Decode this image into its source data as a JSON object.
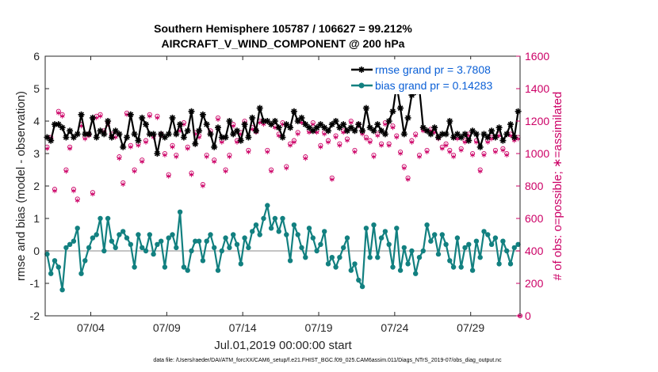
{
  "chart_data": {
    "type": "line",
    "title_line1": "Southern Hemisphere 105787 / 106627 = 99.212%",
    "title_line2": "AIRCRAFT_V_WIND_COMPONENT @ 200 hPa",
    "xlabel": "Jul.01,2019 00:00:00 start",
    "ylabel_left": "rmse and bias (model - observation)",
    "ylabel_right": "# of obs: o=possible; ∗=assimilated",
    "ylim_left": [
      -2,
      6
    ],
    "ylim_right": [
      0,
      1600
    ],
    "xlim": [
      1.0,
      32.25
    ],
    "yticks_left": [
      "-2",
      "-1",
      "0",
      "1",
      "2",
      "3",
      "4",
      "5",
      "6"
    ],
    "yticks_right": [
      "0",
      "200",
      "400",
      "600",
      "800",
      "1000",
      "1200",
      "1400",
      "1600"
    ],
    "xticks": [
      {
        "x": 4,
        "label": "07/04"
      },
      {
        "x": 9,
        "label": "07/09"
      },
      {
        "x": 14,
        "label": "07/14"
      },
      {
        "x": 19,
        "label": "07/19"
      },
      {
        "x": 24,
        "label": "07/24"
      },
      {
        "x": 29,
        "label": "07/29"
      }
    ],
    "legend": [
      {
        "name": "rmse grand pr = 3.7808",
        "color": "#000000"
      },
      {
        "name": "bias grand pr = 0.14283",
        "color": "#128080"
      }
    ],
    "x_start": 1.125,
    "x_step": 0.25,
    "rmse_values": [
      3.5,
      3.4,
      3.9,
      3.9,
      3.8,
      3.5,
      3.7,
      3.5,
      3.6,
      4.2,
      3.6,
      3.6,
      4.1,
      3.5,
      3.7,
      3.6,
      4.0,
      3.5,
      3.7,
      3.6,
      3.2,
      3.5,
      4.2,
      3.6,
      3.4,
      4.1,
      3.9,
      3.6,
      3.6,
      3.0,
      3.6,
      3.5,
      3.6,
      4.1,
      3.6,
      3.9,
      3.5,
      3.7,
      4.3,
      3.3,
      3.7,
      4.2,
      3.9,
      3.6,
      3.2,
      3.8,
      3.5,
      3.5,
      4.0,
      3.6,
      3.7,
      3.4,
      3.9,
      3.5,
      4.1,
      3.7,
      4.4,
      4.0,
      4.0,
      3.9,
      4.0,
      3.8,
      3.5,
      3.9,
      3.8,
      4.3,
      4.0,
      4.1,
      3.9,
      3.8,
      3.7,
      3.8,
      3.9,
      3.8,
      3.7,
      3.9,
      4.0,
      3.8,
      3.9,
      3.7,
      3.8,
      3.7,
      3.9,
      3.7,
      4.4,
      3.8,
      3.7,
      3.9,
      3.7,
      3.6,
      4.0,
      4.3,
      5.1,
      4.4,
      3.6,
      4.1,
      4.8,
      4.9,
      5.0,
      3.8,
      3.7,
      3.6,
      3.8,
      3.5,
      3.6,
      3.6,
      4.0,
      3.5,
      3.6,
      3.5,
      3.6,
      3.4,
      3.7,
      3.6,
      3.2,
      3.6,
      3.5,
      3.7,
      3.5,
      3.8,
      3.4,
      3.6,
      3.9,
      3.5,
      4.3,
      3.7,
      3.8,
      4.2,
      3.8,
      3.6,
      3.9,
      3.7,
      3.8,
      3.6,
      3.5,
      3.7,
      3.6,
      3.4,
      3.6,
      3.4,
      3.3,
      3.5,
      3.2,
      3.6,
      3.4,
      3.7,
      3.4,
      3.4,
      3.5,
      3.4,
      3.3,
      3.7,
      3.4,
      3.6,
      3.5,
      3.6,
      3.9,
      3.3,
      3.4,
      3.4,
      3.6,
      3.7,
      3.2,
      3.1,
      3.5,
      3.1,
      3.4,
      3.3,
      3.6,
      3.5,
      3.3,
      3.7,
      3.3,
      3.4,
      3.5,
      3.2,
      3.3,
      3.5,
      3.3,
      3.6,
      3.3,
      3.6,
      3.4,
      3.3,
      3.3,
      3.6,
      3.1,
      3.4,
      3.2,
      3.5,
      3.3,
      3.6,
      3.4,
      3.6,
      3.3,
      3.4,
      3.2,
      3.6,
      3.4,
      3.5,
      3.7,
      3.3,
      3.4,
      3.3,
      3.5,
      3.2,
      3.4,
      3.3,
      3.6,
      3.2,
      3.2,
      3.5,
      3.1,
      3.2,
      3.5,
      3.6,
      3.0,
      3.4,
      3.4,
      3.6,
      3.0,
      3.4,
      3.2,
      3.6,
      3.2,
      3.3,
      3.3,
      3.5,
      3.3,
      3.4,
      3.2,
      3.6,
      3.3,
      3.2,
      3.1,
      3.3,
      3.4,
      3.5,
      3.3,
      3.2,
      3.2,
      3.7,
      3.3,
      3.1,
      3.4,
      3.2,
      3.5,
      3.1,
      3.4,
      3.5,
      3.3,
      3.2,
      3.4,
      3.5,
      3.2,
      3.4,
      3.3,
      3.6,
      3.3,
      3.2,
      3.4,
      3.5,
      3.3,
      3.1,
      3.6,
      3.2,
      3.4,
      3.3,
      3.5,
      3.2,
      3.4,
      3.3,
      3.2,
      3.5,
      3.3,
      3.2,
      3.5,
      3.4,
      3.3,
      3.4,
      3.5,
      3.1,
      3.3,
      3.4,
      3.5,
      3.2,
      3.2,
      3.6,
      3.3,
      3.4,
      3.2,
      3.5,
      3.1,
      3.4,
      3.5
    ],
    "bias_values": [
      -0.1,
      -0.7,
      -0.3,
      -0.5,
      -1.2,
      0.1,
      0.2,
      0.3,
      0.7,
      -0.7,
      -0.3,
      0.1,
      0.4,
      0.5,
      1.0,
      0.0,
      1.0,
      0.3,
      0.1,
      0.5,
      0.6,
      0.4,
      0.2,
      -0.5,
      0.5,
      0.1,
      0.0,
      0.5,
      -0.1,
      0.2,
      0.3,
      -0.5,
      0.4,
      0.5,
      0.1,
      1.2,
      -0.5,
      -0.6,
      0.0,
      0.3,
      0.3,
      -0.3,
      0.3,
      0.5,
      0.1,
      -0.6,
      0.0,
      0.4,
      0.1,
      0.5,
      0.2,
      -0.4,
      0.4,
      0.1,
      0.6,
      0.8,
      0.5,
      1.0,
      1.4,
      0.7,
      1.0,
      0.6,
      1.0,
      0.5,
      -0.3,
      0.8,
      0.5,
      0.1,
      -0.2,
      0.7,
      0.4,
      0.0,
      0.2,
      0.6,
      -0.4,
      -0.2,
      -0.5,
      -0.2,
      0.1,
      0.4,
      -0.6,
      -0.4,
      -0.9,
      -1.1,
      0.7,
      -0.2,
      0.8,
      -0.2,
      0.4,
      0.6,
      0.2,
      -0.5,
      0.7,
      -0.6,
      0.1,
      -0.4,
      0.0,
      -0.7,
      -0.2,
      0.0,
      0.8,
      0.3,
      0.5,
      -0.1,
      0.5,
      0.2,
      -0.3,
      -0.5,
      0.4,
      -0.5,
      0.1,
      0.2,
      -0.6,
      0.3,
      -0.2,
      0.6,
      0.5,
      0.2,
      0.4,
      -0.4,
      0.3,
      0.0,
      -0.4,
      0.1,
      0.2,
      0.6,
      0.4,
      0.7,
      0.5,
      0.0,
      0.2,
      -0.6,
      0.6,
      0.8,
      0.1,
      0.4,
      0.3,
      0.6,
      0.3,
      0.0,
      0.4,
      0.6,
      0.3,
      0.1,
      0.5,
      0.2,
      0.6,
      0.3,
      0.0,
      0.4,
      0.3,
      0.2,
      0.1,
      0.5,
      0.0,
      0.3,
      0.4,
      0.6,
      0.2,
      0.1,
      0.5,
      -0.1,
      0.3,
      0.6,
      0.2,
      0.4,
      0.8,
      0.1,
      0.3,
      0.9,
      0.2,
      0.5,
      0.4,
      0.1,
      0.6,
      0.3,
      0.0,
      0.5,
      0.7,
      0.2,
      0.4,
      0.1,
      0.6,
      0.3,
      0.8,
      0.2,
      0.1,
      0.5,
      0.4,
      0.3,
      0.6,
      0.1,
      0.2,
      0.7,
      0.4,
      0.3,
      0.5,
      0.0,
      0.6,
      0.3,
      0.2,
      0.8,
      0.4,
      0.5,
      0.1,
      0.3,
      0.6,
      0.2,
      0.9,
      0.4,
      0.3,
      0.7,
      0.1,
      0.5,
      0.6,
      0.2,
      0.4,
      0.3,
      0.8,
      0.5,
      0.1,
      0.6,
      0.3,
      0.4,
      0.7,
      0.2,
      0.5,
      0.9,
      0.3,
      0.6,
      0.4,
      1.1,
      0.3,
      0.7,
      0.6,
      0.2,
      0.8,
      0.5,
      0.9,
      0.4,
      1.0,
      0.6,
      0.3,
      0.7,
      0.5,
      0.8,
      0.2,
      0.6,
      0.4,
      0.7,
      0.9,
      0.5,
      0.3,
      0.6,
      0.8,
      0.4,
      0.7,
      1.1,
      0.5,
      0.6,
      0.3,
      0.9,
      0.7,
      0.4,
      0.8,
      0.5,
      1.0,
      0.6,
      0.7,
      0.9,
      0.4,
      0.8,
      1.1,
      0.6,
      0.7,
      1.0,
      0.5,
      0.8,
      0.6,
      0.9,
      1.1
    ],
    "obs_possible": [
      1040,
      1100,
      780,
      1260,
      1240,
      900,
      1040,
      780,
      720,
      1180,
      1100,
      1120,
      760,
      1230,
      1240,
      1140,
      1190,
      1120,
      1110,
      980,
      820,
      1250,
      1050,
      900,
      1060,
      960,
      1080,
      1240,
      1110,
      1230,
      1120,
      1000,
      870,
      1050,
      990,
      1150,
      1190,
      1040,
      880,
      1130,
      1110,
      810,
      990,
      1140,
      960,
      1220,
      1080,
      900,
      990,
      1180,
      1080,
      1130,
      1200,
      1020,
      1160,
      1140,
      1200,
      1190,
      1020,
      900,
      1170,
      1120,
      1190,
      920,
      1060,
      1080,
      1130,
      1200,
      980,
      1140,
      1190,
      1140,
      1050,
      1130,
      1080,
      850,
      1110,
      1060,
      1140,
      1090,
      1200,
      1020,
      1180,
      1130,
      1100,
      1080,
      990,
      1120,
      1060,
      1190,
      1060,
      1170,
      1110,
      1010,
      920,
      850,
      1080,
      1120,
      990,
      1150,
      1020,
      1150,
      1140,
      1100,
      1040,
      1060,
      1020,
      990,
      1100,
      1030,
      1080,
      1120,
      1000,
      1080,
      900,
      1000,
      1080,
      1100,
      1020,
      1120,
      1030,
      1000,
      1120,
      1090,
      1100,
      1060,
      1010,
      1080,
      1080,
      1090,
      1080,
      1050,
      1150,
      1100,
      1070,
      1040,
      1110,
      1080,
      1060,
      1120,
      1020,
      1100,
      1060,
      1080,
      1040,
      1110,
      1090,
      1060,
      1100,
      1050,
      1090,
      1030,
      1120,
      1080,
      1060,
      1100,
      1040,
      1070,
      1010,
      1080,
      1100,
      1050,
      1090,
      1070,
      1020,
      1060,
      1100,
      1080,
      1030,
      1090,
      1050,
      1100,
      1060,
      1040,
      1080,
      1020,
      1090,
      1070,
      1050,
      1100,
      1030,
      1060,
      1080,
      1090,
      1040,
      1070,
      1020,
      1100,
      1060,
      1080,
      1050,
      1090,
      1030,
      1070,
      1060,
      1100,
      1080,
      1040,
      1090,
      1060,
      1050,
      1080,
      1020,
      1070,
      1100,
      1060,
      1040,
      1090,
      1050,
      1080,
      1030,
      1070,
      1060,
      1100,
      1040,
      1090,
      1050,
      1080,
      1070,
      1060,
      1020,
      1090,
      1100,
      1040,
      1070,
      1080,
      1050,
      1060,
      1090,
      1030,
      1080,
      1070,
      1100,
      1040,
      1060,
      1090,
      1050,
      1080,
      1070,
      1020,
      1100,
      1060,
      1040,
      1090,
      1080,
      1050,
      1070,
      1060,
      1030,
      1100,
      1080,
      1040,
      1090,
      1070,
      1060,
      1050,
      1080,
      1020,
      1090,
      1100,
      1040,
      1070,
      1060,
      1080,
      1050,
      1090,
      1030,
      1070,
      1060,
      1100,
      1040,
      1080,
      1050,
      1090,
      1070,
      1060,
      1020,
      1080,
      1100,
      1040,
      1090,
      1070,
      1050,
      1060,
      1080,
      1030,
      1100
    ],
    "obs_assimilated": [
      1030,
      1090,
      770,
      1250,
      1230,
      890,
      1030,
      770,
      710,
      1170,
      1090,
      1110,
      750,
      1220,
      1230,
      1130,
      1180,
      1110,
      1100,
      970,
      810,
      1240,
      1040,
      890,
      1050,
      950,
      1070,
      1230,
      1100,
      1220,
      1110,
      990,
      860,
      1040,
      980,
      1140,
      1180,
      1030,
      870,
      1120,
      1100,
      800,
      980,
      1130,
      950,
      1210,
      1070,
      890,
      980,
      1170,
      1070,
      1120,
      1190,
      1010,
      1150,
      1130,
      1190,
      1180,
      1010,
      890,
      1160,
      1110,
      1180,
      910,
      1050,
      1070,
      1120,
      1190,
      970,
      1130,
      1180,
      1130,
      1040,
      1120,
      1070,
      840,
      1100,
      1050,
      1130,
      1080,
      1190,
      1010,
      1170,
      1120,
      1090,
      1070,
      980,
      1110,
      1050,
      1180,
      1050,
      1160,
      1100,
      1000,
      910,
      840,
      1070,
      1110,
      980,
      1140,
      1010,
      1140,
      1130,
      1090,
      1030,
      1050,
      1010,
      980,
      1090,
      1020,
      1070,
      1110,
      990,
      1070,
      890,
      990,
      1070,
      1090,
      1010,
      1110,
      1020,
      990,
      1110,
      1080,
      1090,
      1050,
      1000,
      1070,
      1070,
      1080,
      1070,
      1040,
      1140,
      1090,
      1060,
      1030,
      1100,
      1070,
      1050,
      1110,
      1010,
      1090,
      1050,
      1070,
      1030,
      1100,
      1080,
      1050,
      1090,
      1040,
      1080,
      1020,
      1110,
      1070,
      1050,
      1090,
      1030,
      1060,
      1000,
      1070,
      1090,
      1040,
      1080,
      1060,
      1010,
      1050,
      1090,
      1070,
      1020,
      1080,
      1040,
      1090,
      1050,
      1030,
      1070,
      1010,
      1080,
      1060,
      1040,
      1090,
      1020,
      1050,
      1070,
      1080,
      1030,
      1060,
      1010,
      1090,
      1050,
      1070,
      1040,
      1080,
      1020,
      1060,
      1050,
      1090,
      1070,
      1030,
      1080,
      1050,
      1040,
      1070,
      1010,
      1060,
      1090,
      1050,
      1030,
      1080,
      1040,
      1070,
      1020,
      1060,
      1050,
      1090,
      1030,
      1080,
      1040,
      1070,
      1060,
      1050,
      1010,
      1080,
      1090,
      1030,
      1060,
      1070,
      1040,
      1050,
      1080,
      1020,
      1070,
      1060,
      1090,
      1030,
      1050,
      1080,
      1040,
      1070,
      1060,
      1010,
      1090,
      1050,
      1030,
      1080,
      1070,
      1040,
      1060,
      1050,
      1020,
      1090,
      1070,
      1030,
      1080,
      1060,
      1050,
      1040,
      1070,
      1010,
      1080,
      1090,
      1030,
      1060,
      1050,
      1070,
      1040,
      1080,
      1020,
      1060,
      1050,
      1090,
      1030,
      1070,
      1040,
      1080,
      1060,
      1050,
      1010,
      1070,
      1090,
      1030,
      1080,
      1060,
      1040,
      1050,
      1070,
      1020,
      1090
    ]
  },
  "footnote": "data file: /Users/raeder/DAI/ATM_forcXX/CAM6_setup/f.e21.FHIST_BGC.f09_025.CAM6assim.011/Diags_NTrS_2019-07/obs_diag_output.nc",
  "colors": {
    "rmse": "#000000",
    "bias": "#128080",
    "obs": "#cc0066",
    "zero_line": "#b0b0b0",
    "legend_text": "#0a5fd6"
  }
}
